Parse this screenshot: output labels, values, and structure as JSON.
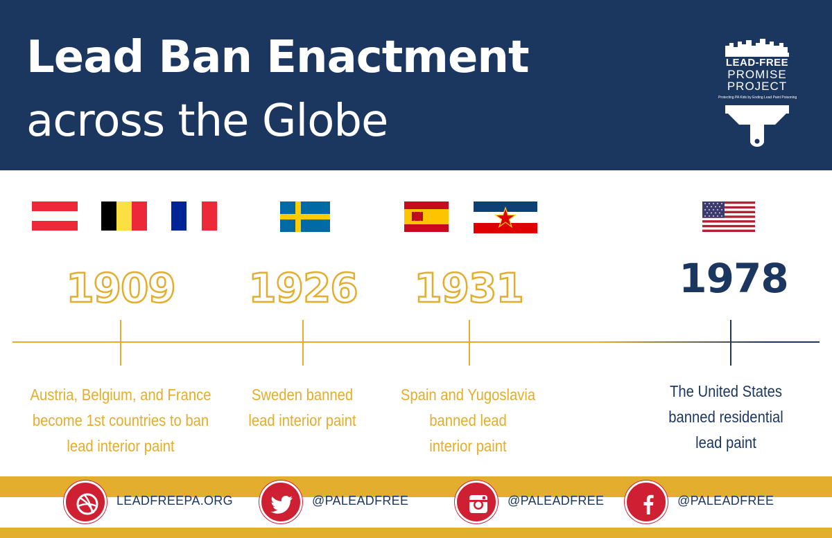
{
  "header": {
    "title_line1": "Lead Ban Enactment",
    "title_line2": "across the Globe",
    "background": "#1b365f"
  },
  "logo": {
    "line1": "LEAD-FREE",
    "line2": "PROMISE",
    "line3": "PROJECT",
    "tagline": "Protecting PA Kids by Ending Lead Paint Poisoning"
  },
  "timeline": [
    {
      "year": "1909",
      "flags": [
        "Austria",
        "Belgium",
        "France"
      ],
      "description": [
        "Austria, Belgium, and France",
        "become 1st  countries to ban",
        "lead interior paint"
      ]
    },
    {
      "year": "1926",
      "flags": [
        "Sweden"
      ],
      "description": [
        "Sweden banned",
        "lead interior paint"
      ]
    },
    {
      "year": "1931",
      "flags": [
        "Spain",
        "Yugoslavia"
      ],
      "description": [
        "Spain and Yugoslavia",
        "banned lead",
        "interior paint"
      ]
    },
    {
      "year": "1978",
      "flags": [
        "United States"
      ],
      "description": [
        "The United States",
        "banned residential",
        "lead paint"
      ]
    }
  ],
  "footer": {
    "items": [
      {
        "icon": "dribbble-icon",
        "label": "LEADFREEPA.ORG"
      },
      {
        "icon": "twitter-icon",
        "label": "@PALEADFREE"
      },
      {
        "icon": "instagram-icon",
        "label": "@PALEADFREE"
      },
      {
        "icon": "facebook-icon",
        "label": "@PALEADFREE"
      }
    ]
  },
  "colors": {
    "navy": "#1b365f",
    "gold": "#e3ad2d",
    "red": "#cf1f33"
  }
}
